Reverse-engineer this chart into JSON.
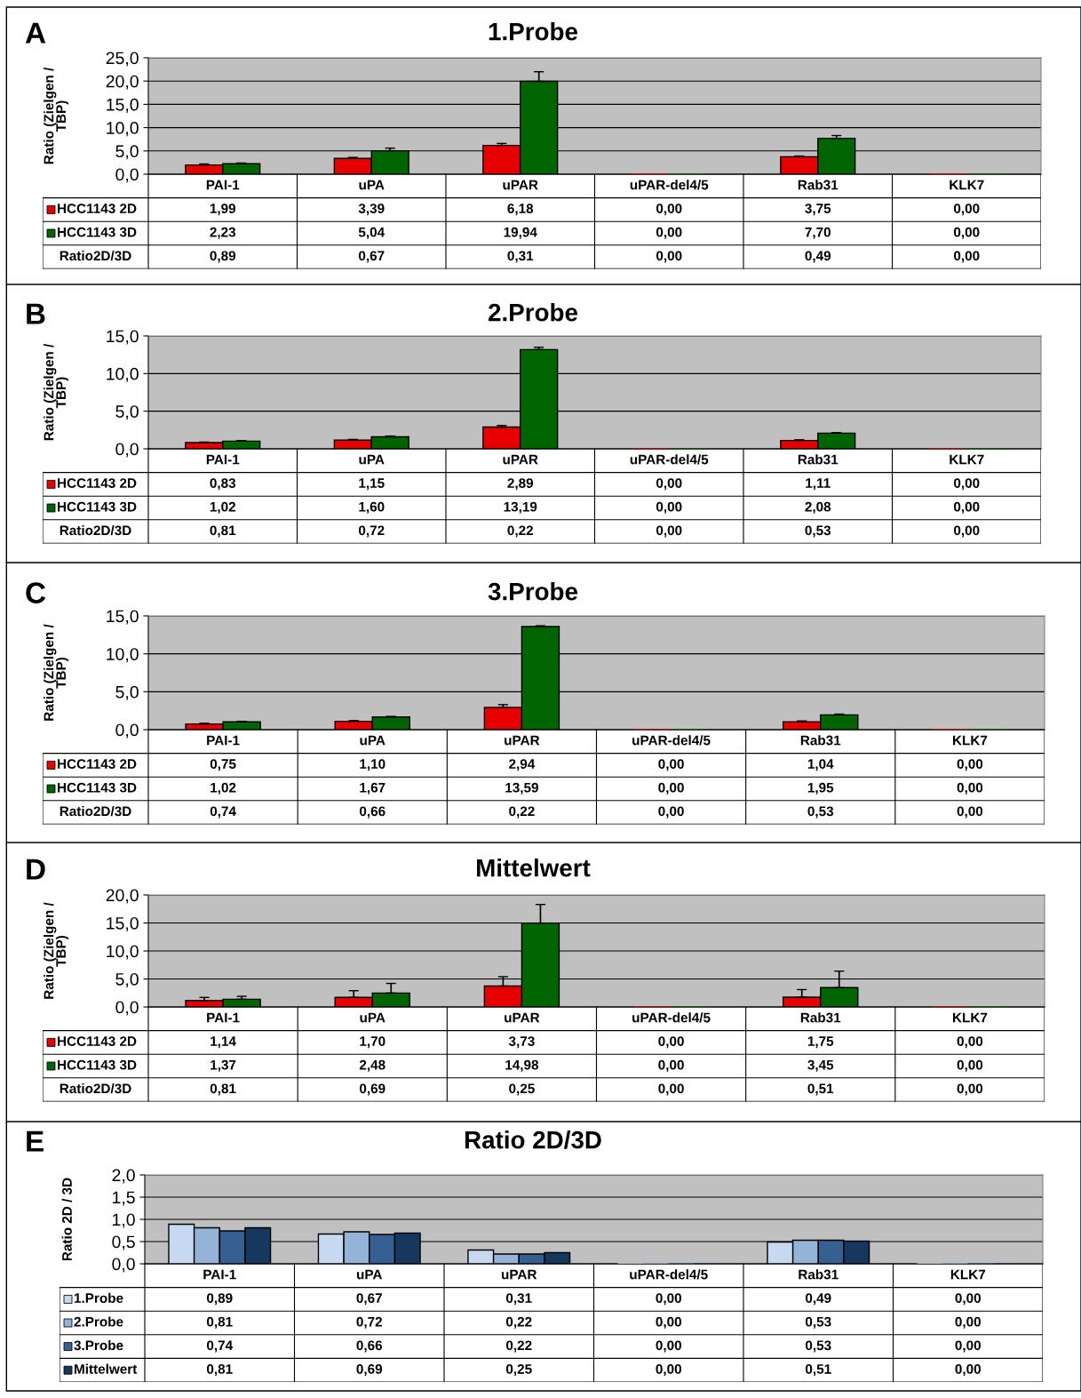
{
  "chart_data": [
    {
      "type": "bar",
      "title": "1.Probe",
      "ylabel": "Ratio (Zielgen /\nTBP)",
      "annotations": [
        "A",
        "Ratio2D/3D",
        "0,89",
        "0,67",
        "0,31",
        "0,00",
        "0,49",
        "0,00"
      ],
      "grid": "y",
      "legend": "left",
      "categories": [
        "PAI-1",
        "uPA",
        "uPAR",
        "uPAR-del4/5",
        "Rab31",
        "KLK7"
      ],
      "ylim": [
        0,
        25
      ],
      "yticks": [
        {
          "value": 0,
          "label": "0,0"
        },
        {
          "value": 5,
          "label": "5,0"
        },
        {
          "value": 10,
          "label": "10,0"
        },
        {
          "value": 15,
          "label": "15,0"
        },
        {
          "value": 20,
          "label": "20,0"
        },
        {
          "value": 25,
          "label": "25,0"
        }
      ],
      "series": [
        {
          "name": "HCC1143 2D",
          "color": "#e60000",
          "values": [
            1.99,
            3.39,
            6.18,
            0,
            3.75,
            0
          ],
          "value_labels": [
            "1,99",
            "3,39",
            "6,18",
            "0,00",
            "3,75",
            "0,00"
          ],
          "errors": [
            [
              1.99,
              2.2
            ],
            [
              3.39,
              3.6
            ],
            [
              6.18,
              6.6
            ],
            null,
            [
              3.75,
              3.9
            ],
            null
          ]
        },
        {
          "name": "HCC1143 3D",
          "color": "#006400",
          "values": [
            2.23,
            5.04,
            19.94,
            0,
            7.7,
            0
          ],
          "value_labels": [
            "2,23",
            "5,04",
            "19,94",
            "0,00",
            "7,70",
            "0,00"
          ],
          "errors": [
            [
              2.23,
              2.4
            ],
            [
              5.04,
              5.6
            ],
            [
              19.94,
              22.0
            ],
            null,
            [
              7.7,
              8.3
            ],
            null
          ]
        }
      ]
    },
    {
      "type": "bar",
      "title": "2.Probe",
      "ylabel": "Ratio (Zielgen /\nTBP)",
      "annotations": [
        "B",
        "Ratio2D/3D",
        "0,81",
        "0,72",
        "0,22",
        "0,00",
        "0,53",
        "0,00"
      ],
      "grid": "y",
      "legend": "left",
      "categories": [
        "PAI-1",
        "uPA",
        "uPAR",
        "uPAR-del4/5",
        "Rab31",
        "KLK7"
      ],
      "ylim": [
        0,
        15
      ],
      "yticks": [
        {
          "value": 0,
          "label": "0,0"
        },
        {
          "value": 5,
          "label": "5,0"
        },
        {
          "value": 10,
          "label": "10,0"
        },
        {
          "value": 15,
          "label": "15,0"
        }
      ],
      "series": [
        {
          "name": "HCC1143 2D",
          "color": "#e60000",
          "values": [
            0.83,
            1.15,
            2.89,
            0,
            1.11,
            0
          ],
          "value_labels": [
            "0,83",
            "1,15",
            "2,89",
            "0,00",
            "1,11",
            "0,00"
          ],
          "errors": [
            [
              0.83,
              0.9
            ],
            [
              1.15,
              1.25
            ],
            [
              2.89,
              3.1
            ],
            null,
            [
              1.11,
              1.2
            ],
            null
          ]
        },
        {
          "name": "HCC1143 3D",
          "color": "#006400",
          "values": [
            1.02,
            1.6,
            13.19,
            0,
            2.08,
            0
          ],
          "value_labels": [
            "1,02",
            "1,60",
            "13,19",
            "0,00",
            "2,08",
            "0,00"
          ],
          "errors": [
            [
              1.02,
              1.1
            ],
            [
              1.6,
              1.7
            ],
            [
              13.19,
              13.5
            ],
            null,
            [
              2.08,
              2.15
            ],
            null
          ]
        }
      ]
    },
    {
      "type": "bar",
      "title": "3.Probe",
      "ylabel": "Ratio (Zielgen /\nTBP)",
      "annotations": [
        "C",
        "Ratio2D/3D",
        "0,74",
        "0,66",
        "0,22",
        "0,00",
        "0,53",
        "0,00"
      ],
      "grid": "y",
      "legend": "left",
      "categories": [
        "PAI-1",
        "uPA",
        "uPAR",
        "uPAR-del4/5",
        "Rab31",
        "KLK7"
      ],
      "ylim": [
        0,
        15
      ],
      "yticks": [
        {
          "value": 0,
          "label": "0,0"
        },
        {
          "value": 5,
          "label": "5,0"
        },
        {
          "value": 10,
          "label": "10,0"
        },
        {
          "value": 15,
          "label": "15,0"
        }
      ],
      "series": [
        {
          "name": "HCC1143 2D",
          "color": "#e60000",
          "values": [
            0.75,
            1.1,
            2.94,
            0,
            1.04,
            0
          ],
          "value_labels": [
            "0,75",
            "1,10",
            "2,94",
            "0,00",
            "1,04",
            "0,00"
          ],
          "errors": [
            [
              0.75,
              0.85
            ],
            [
              1.1,
              1.2
            ],
            [
              2.94,
              3.3
            ],
            null,
            [
              1.04,
              1.15
            ],
            null
          ]
        },
        {
          "name": "HCC1143 3D",
          "color": "#006400",
          "values": [
            1.02,
            1.67,
            13.59,
            0,
            1.95,
            0
          ],
          "value_labels": [
            "1,02",
            "1,67",
            "13,59",
            "0,00",
            "1,95",
            "0,00"
          ],
          "errors": [
            [
              1.02,
              1.1
            ],
            [
              1.67,
              1.75
            ],
            [
              13.59,
              13.7
            ],
            null,
            [
              1.95,
              2.05
            ],
            null
          ]
        }
      ]
    },
    {
      "type": "bar",
      "title": "Mittelwert",
      "ylabel": "Ratio (Zielgen /\nTBP)",
      "annotations": [
        "D",
        "Ratio2D/3D",
        "0,81",
        "0,69",
        "0,25",
        "0,00",
        "0,51",
        "0,00"
      ],
      "grid": "y",
      "legend": "left",
      "categories": [
        "PAI-1",
        "uPA",
        "uPAR",
        "uPAR-del4/5",
        "Rab31",
        "KLK7"
      ],
      "ylim": [
        0,
        20
      ],
      "yticks": [
        {
          "value": 0,
          "label": "0,0"
        },
        {
          "value": 5,
          "label": "5,0"
        },
        {
          "value": 10,
          "label": "10,0"
        },
        {
          "value": 15,
          "label": "15,0"
        },
        {
          "value": 20,
          "label": "20,0"
        }
      ],
      "series": [
        {
          "name": "HCC1143 2D",
          "color": "#e60000",
          "values": [
            1.14,
            1.7,
            3.73,
            0,
            1.75,
            0
          ],
          "value_labels": [
            "1,14",
            "1,70",
            "3,73",
            "0,00",
            "1,75",
            "0,00"
          ],
          "errors": [
            [
              1.14,
              1.7
            ],
            [
              1.7,
              2.9
            ],
            [
              3.73,
              5.4
            ],
            null,
            [
              1.75,
              3.1
            ],
            null
          ]
        },
        {
          "name": "HCC1143 3D",
          "color": "#006400",
          "values": [
            1.37,
            2.48,
            14.98,
            0,
            3.45,
            0
          ],
          "value_labels": [
            "1,37",
            "2,48",
            "14,98",
            "0,00",
            "3,45",
            "0,00"
          ],
          "errors": [
            [
              1.37,
              1.9
            ],
            [
              2.48,
              4.2
            ],
            [
              14.98,
              18.3
            ],
            null,
            [
              3.45,
              6.4
            ],
            null
          ]
        }
      ]
    },
    {
      "type": "bar",
      "title": "Ratio 2D/3D",
      "ylabel": "Ratio 2D / 3D",
      "annotations": [
        "E"
      ],
      "grid": "y",
      "legend": "left",
      "categories": [
        "PAI-1",
        "uPA",
        "uPAR",
        "uPAR-del4/5",
        "Rab31",
        "KLK7"
      ],
      "ylim": [
        0,
        2
      ],
      "yticks": [
        {
          "value": 0,
          "label": "0,0"
        },
        {
          "value": 0.5,
          "label": "0,5"
        },
        {
          "value": 1,
          "label": "1,0"
        },
        {
          "value": 1.5,
          "label": "1,5"
        },
        {
          "value": 2,
          "label": "2,0"
        }
      ],
      "series": [
        {
          "name": "1.Probe",
          "color": "#c6d9f1",
          "values": [
            0.89,
            0.67,
            0.31,
            0,
            0.49,
            0
          ],
          "value_labels": [
            "0,89",
            "0,67",
            "0,31",
            "0,00",
            "0,49",
            "0,00"
          ]
        },
        {
          "name": "2.Probe",
          "color": "#95b3d7",
          "values": [
            0.81,
            0.72,
            0.22,
            0,
            0.53,
            0
          ],
          "value_labels": [
            "0,81",
            "0,72",
            "0,22",
            "0,00",
            "0,53",
            "0,00"
          ]
        },
        {
          "name": "3.Probe",
          "color": "#366092",
          "values": [
            0.74,
            0.66,
            0.22,
            0,
            0.53,
            0
          ],
          "value_labels": [
            "0,74",
            "0,66",
            "0,22",
            "0,00",
            "0,53",
            "0,00"
          ]
        },
        {
          "name": "Mittelwert",
          "color": "#17375e",
          "values": [
            0.81,
            0.69,
            0.25,
            0,
            0.51,
            0
          ],
          "value_labels": [
            "0,81",
            "0,69",
            "0,25",
            "0,00",
            "0,51",
            "0,00"
          ]
        }
      ]
    }
  ]
}
